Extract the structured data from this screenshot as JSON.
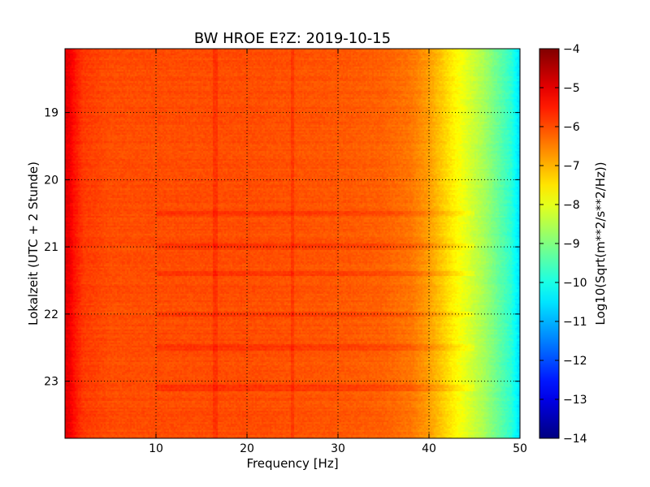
{
  "chart_data": {
    "type": "heatmap",
    "title": "BW HROE E?Z: 2019-10-15",
    "xlabel": "Frequency [Hz]",
    "ylabel": "Lokalzeit (UTC + 2 Stunde)",
    "xlim": [
      0,
      50
    ],
    "ylim_hours": [
      18.05,
      23.85
    ],
    "x_ticks": [
      10,
      20,
      30,
      40,
      50
    ],
    "y_ticks": [
      19,
      20,
      21,
      22,
      23
    ],
    "grid": true,
    "colorbar": {
      "label": "Log10(Sqrt(m**2/s**2/Hz))",
      "min": -14,
      "max": -4,
      "ticks": [
        -4,
        -5,
        -6,
        -7,
        -8,
        -9,
        -10,
        -11,
        -12,
        -13,
        -14
      ],
      "colormap": "jet"
    },
    "spectral_profile": {
      "frequency_hz": [
        0,
        0.5,
        1,
        2,
        5,
        10,
        15,
        20,
        25,
        30,
        35,
        38,
        40,
        41,
        42,
        43,
        44,
        45,
        46,
        47,
        48,
        49,
        50
      ],
      "log10_amplitude": [
        -5.0,
        -5.1,
        -5.4,
        -5.8,
        -6.0,
        -6.0,
        -6.0,
        -6.0,
        -6.05,
        -6.1,
        -6.2,
        -6.4,
        -6.8,
        -7.1,
        -7.4,
        -7.7,
        -8.0,
        -8.3,
        -8.6,
        -9.0,
        -9.4,
        -9.8,
        -10.6
      ]
    },
    "time_bands_louder": [
      20.5,
      21.0,
      21.4,
      22.0,
      22.5,
      23.1
    ],
    "frequency_lines_louder_hz": [
      16.5,
      25.0
    ]
  }
}
